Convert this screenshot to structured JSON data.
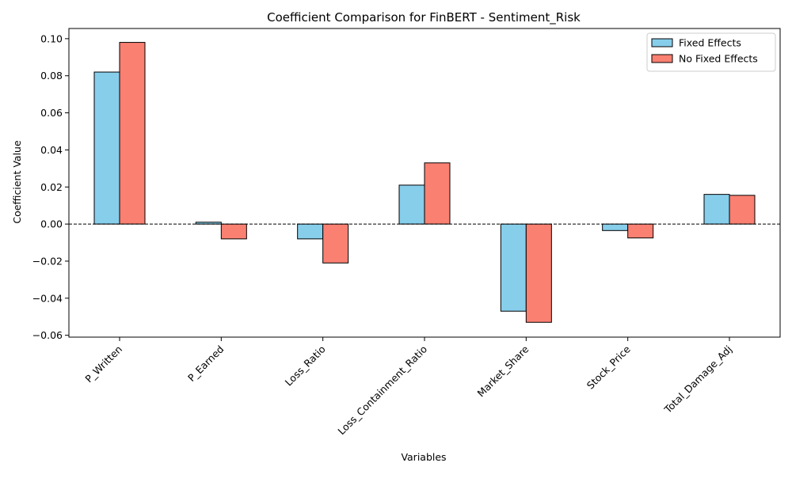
{
  "chart_data": {
    "type": "bar",
    "title": "Coefficient Comparison for FinBERT - Sentiment_Risk",
    "xlabel": "Variables",
    "ylabel": "Coefficient Value",
    "categories": [
      "P_Written",
      "P_Earned",
      "Loss_Ratio",
      "Loss_Containment_Ratio",
      "Market_Share",
      "Stock_Price",
      "Total_Damage_Adj"
    ],
    "series": [
      {
        "name": "Fixed Effects",
        "color": "#87CEEB",
        "values": [
          0.082,
          0.001,
          -0.008,
          0.021,
          -0.047,
          -0.0035,
          0.016
        ]
      },
      {
        "name": "No Fixed Effects",
        "color": "#FA8072",
        "values": [
          0.098,
          -0.008,
          -0.021,
          0.033,
          -0.053,
          -0.0075,
          0.0155
        ]
      }
    ],
    "ylim": [
      -0.061,
      0.1055
    ],
    "yticks": [
      -0.06,
      -0.04,
      -0.02,
      0.0,
      0.02,
      0.04,
      0.06,
      0.08,
      0.1
    ],
    "ytick_labels": [
      "−0.06",
      "−0.04",
      "−0.02",
      "0.00",
      "0.02",
      "0.04",
      "0.06",
      "0.08",
      "0.10"
    ],
    "zero_line": true,
    "grid": false,
    "legend_position": "top-right"
  }
}
